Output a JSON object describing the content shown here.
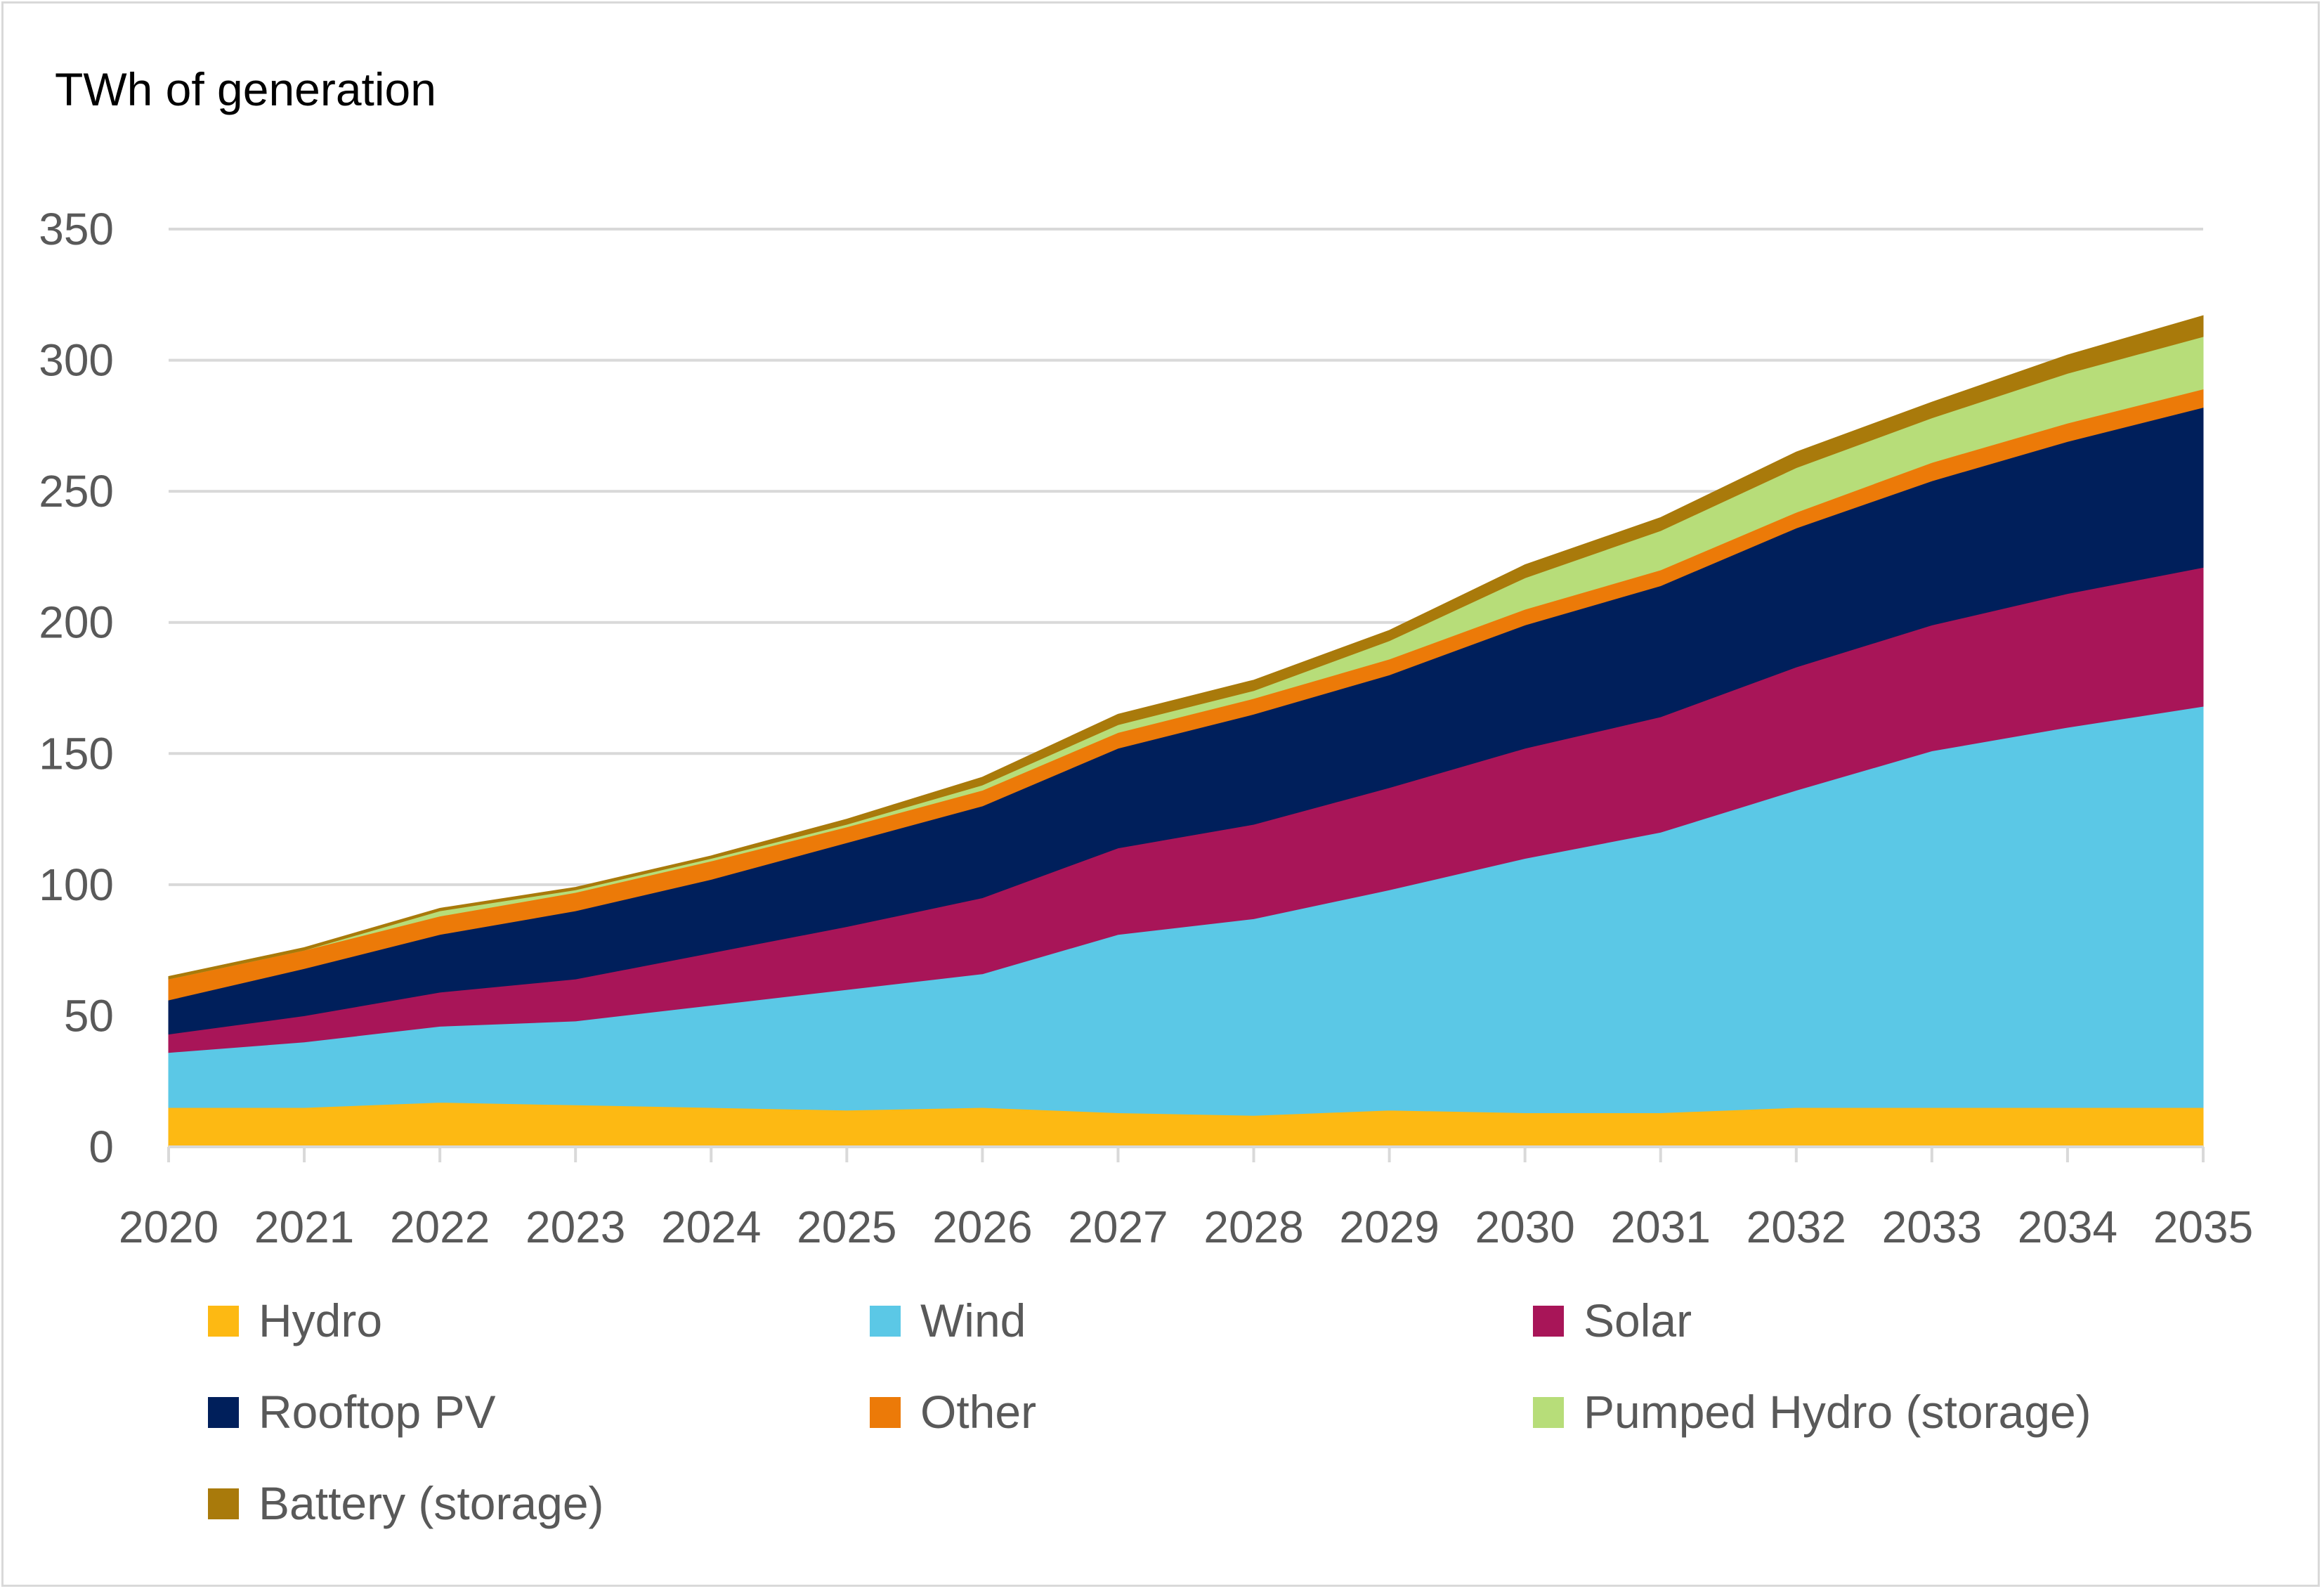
{
  "chart_data": {
    "type": "area",
    "stacked": true,
    "ylabel": "TWh of generation",
    "ylim": [
      0,
      350
    ],
    "yticks": [
      0,
      50,
      100,
      150,
      200,
      250,
      300,
      350
    ],
    "grid": true,
    "legend_position": "bottom",
    "x": [
      "2020",
      "2021",
      "2022",
      "2023",
      "2024",
      "2025",
      "2026",
      "2027",
      "2028",
      "2029",
      "2030",
      "2031",
      "2032",
      "2033",
      "2034",
      "2035"
    ],
    "series": [
      {
        "name": "Hydro",
        "color": "#FDB913",
        "values": [
          15,
          15,
          17,
          16,
          15,
          14,
          15,
          13,
          12,
          14,
          13,
          13,
          15,
          15,
          15,
          15
        ]
      },
      {
        "name": "Wind",
        "color": "#5BC8E6",
        "values": [
          21,
          25,
          29,
          32,
          39,
          46,
          51,
          68,
          75,
          84,
          97,
          107,
          121,
          136,
          145,
          153
        ]
      },
      {
        "name": "Solar",
        "color": "#A81558",
        "values": [
          7,
          10,
          13,
          16,
          20,
          24,
          29,
          33,
          36,
          39,
          42,
          44,
          47,
          48,
          51,
          53
        ]
      },
      {
        "name": "Rooftop PV",
        "color": "#001F5B",
        "values": [
          13,
          18,
          22,
          26,
          28,
          32,
          35,
          38,
          42,
          43,
          47,
          50,
          53,
          55,
          58,
          61
        ]
      },
      {
        "name": "Other",
        "color": "#EC7A08",
        "values": [
          8,
          7,
          7,
          7,
          7,
          6,
          6,
          6,
          6,
          6,
          6,
          6,
          6,
          7,
          7,
          7
        ]
      },
      {
        "name": "Pumped Hydro (storage)",
        "color": "#B7DD79",
        "values": [
          0,
          0,
          2,
          1,
          1,
          1,
          2,
          3,
          3,
          7,
          12,
          15,
          17,
          17,
          19,
          20
        ]
      },
      {
        "name": "Battery (storage)",
        "color": "#A97A0B",
        "values": [
          1,
          1,
          1,
          1,
          1,
          2,
          3,
          4,
          4,
          4,
          5,
          5,
          6,
          6,
          7,
          8
        ]
      }
    ]
  }
}
